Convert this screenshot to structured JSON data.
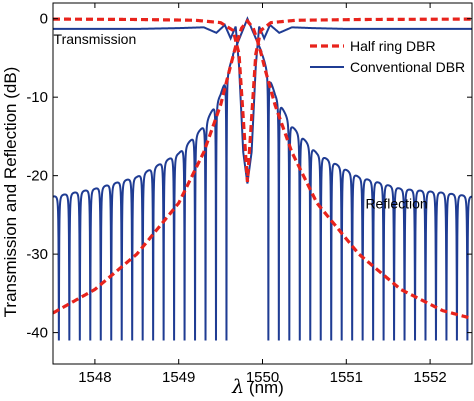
{
  "chart_data": {
    "type": "line",
    "xlabel_symbol": "λ",
    "xlabel_unit": "(nm)",
    "ylabel": "Transmission and Reflection (dB)",
    "xlim": [
      1547.5,
      1552.5
    ],
    "ylim": [
      -44,
      2
    ],
    "x_ticks": [
      "1548",
      "1549",
      "1550",
      "1551",
      "1552"
    ],
    "x_tick_values": [
      1548,
      1549,
      1550,
      1551,
      1552
    ],
    "y_ticks": [
      "0",
      "-10",
      "-20",
      "-30",
      "-40"
    ],
    "y_tick_values": [
      0,
      -10,
      -20,
      -30,
      -40
    ],
    "grid": false,
    "legend_position": "top-right",
    "annotations": [
      {
        "text": "Transmission",
        "x": 1548.0,
        "y": -3.2
      },
      {
        "text": "Reflection",
        "x": 1551.6,
        "y": -24.2
      }
    ],
    "series": [
      {
        "name": "Half ring DBR",
        "color": "#e8231c",
        "style": "dashed",
        "curves": [
          {
            "label": "transmission",
            "x": [
              1547.5,
              1548.5,
              1549.2,
              1549.5,
              1549.65,
              1549.72,
              1549.82,
              1549.92,
              1549.98,
              1550.1,
              1550.4,
              1551.2,
              1552.5
            ],
            "y": [
              -0.05,
              -0.1,
              -0.2,
              -0.5,
              -1.5,
              -4.5,
              -20.8,
              -4.5,
              -1.5,
              -0.5,
              -0.2,
              -0.1,
              -0.05
            ]
          },
          {
            "label": "reflection",
            "x": [
              1547.5,
              1548.0,
              1548.5,
              1549.0,
              1549.3,
              1549.5,
              1549.6,
              1549.68,
              1549.75,
              1549.82,
              1549.89,
              1549.96,
              1550.04,
              1550.15,
              1550.35,
              1550.65,
              1551.15,
              1551.65,
              1552.15,
              1552.5
            ],
            "y": [
              -37.5,
              -34.5,
              -30.0,
              -23.5,
              -17.0,
              -11.0,
              -6.8,
              -3.5,
              -1.2,
              -0.3,
              -1.2,
              -3.5,
              -6.8,
              -11.0,
              -17.0,
              -23.5,
              -30.0,
              -34.5,
              -37.2,
              -38.2
            ]
          }
        ]
      },
      {
        "name": "Conventional DBR",
        "color": "#1f3c93",
        "style": "solid",
        "curves": [
          {
            "label": "transmission",
            "x": [
              1547.5,
              1548.5,
              1549.0,
              1549.3,
              1549.45,
              1549.55,
              1549.62,
              1549.68,
              1549.72,
              1549.77,
              1549.82,
              1549.87,
              1549.92,
              1549.96,
              1550.02,
              1550.09,
              1550.2,
              1550.35,
              1550.6,
              1551.0,
              1552.5
            ],
            "y": [
              -1.3,
              -1.3,
              -1.2,
              -1.1,
              -1.8,
              -0.8,
              -2.5,
              -1.0,
              -6.0,
              -17.0,
              -21.0,
              -17.0,
              -6.0,
              -1.0,
              -2.5,
              -0.8,
              -1.8,
              -1.1,
              -1.2,
              -1.3,
              -1.3
            ]
          },
          {
            "label": "reflection",
            "envelope_peak_x": [
              1547.5,
              1548.0,
              1548.5,
              1549.0,
              1549.3,
              1549.5,
              1549.65,
              1549.82,
              1550.0,
              1550.15,
              1550.35,
              1550.65,
              1551.15,
              1551.65,
              1552.15,
              1552.5
            ],
            "envelope_peak_y": [
              -22.5,
              -21.5,
              -20.0,
              -17.0,
              -13.5,
              -9.5,
              -4.5,
              0.0,
              -4.5,
              -9.5,
              -13.5,
              -17.0,
              -20.0,
              -21.5,
              -22.0,
              -22.5
            ],
            "null_depth_y": -41.0,
            "fringe_period_nm": 0.125
          }
        ]
      }
    ]
  }
}
